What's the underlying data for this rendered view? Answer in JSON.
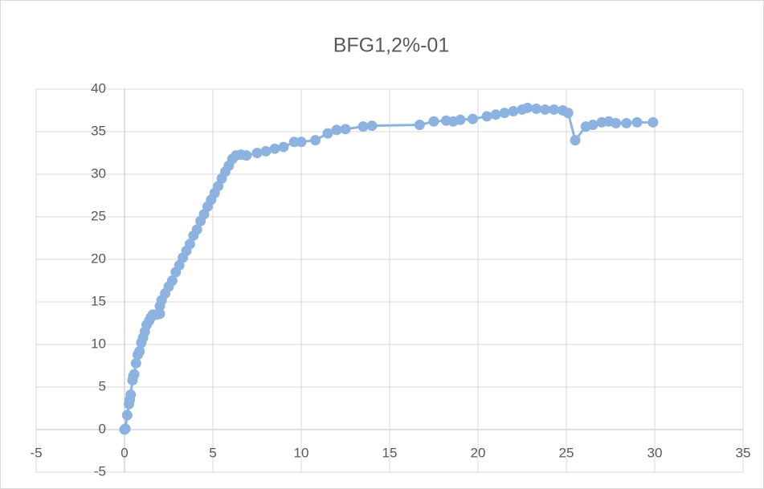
{
  "chart_data": {
    "type": "scatter",
    "title": "BFG1,2%-01",
    "series": [
      {
        "color": "#8cb3e0",
        "x": [
          0,
          0.05,
          0.15,
          0.25,
          0.3,
          0.35,
          0.45,
          0.5,
          0.55,
          0.65,
          0.75,
          0.85,
          0.95,
          1.05,
          1.15,
          1.25,
          1.4,
          1.5,
          1.6,
          1.8,
          2.0,
          2.0,
          2.1,
          2.3,
          2.5,
          2.7,
          2.9,
          3.1,
          3.3,
          3.5,
          3.7,
          3.9,
          4.1,
          4.3,
          4.5,
          4.7,
          4.9,
          5.1,
          5.3,
          5.5,
          5.7,
          5.9,
          6.1,
          6.3,
          6.6,
          6.9,
          7.5,
          8.0,
          8.5,
          9.0,
          9.6,
          10.0,
          10.8,
          11.5,
          12.0,
          12.5,
          13.5,
          14.0,
          16.7,
          17.5,
          18.2,
          18.6,
          19.0,
          19.7,
          20.5,
          21.0,
          21.5,
          22.0,
          22.5,
          22.8,
          23.3,
          23.8,
          24.3,
          24.8,
          25.1,
          25.5,
          26.1,
          26.5,
          27.0,
          27.4,
          27.8,
          28.4,
          29.0,
          29.9
        ],
        "values": [
          0,
          0.1,
          1.7,
          3,
          3.5,
          4.1,
          5.8,
          6.3,
          6.5,
          7.8,
          8.8,
          9.2,
          10.2,
          10.8,
          11.5,
          12.3,
          12.8,
          13.2,
          13.5,
          13.5,
          13.6,
          14.5,
          15.2,
          16,
          16.8,
          17.5,
          18.5,
          19.3,
          20.2,
          21,
          21.8,
          22.8,
          23.5,
          24.5,
          25.3,
          26.2,
          27,
          27.8,
          28.6,
          29.5,
          30.3,
          31,
          31.8,
          32.2,
          32.3,
          32.2,
          32.5,
          32.7,
          33,
          33.2,
          33.8,
          33.8,
          34,
          34.8,
          35.2,
          35.3,
          35.6,
          35.7,
          35.8,
          36.2,
          36.3,
          36.2,
          36.4,
          36.5,
          36.8,
          37,
          37.2,
          37.4,
          37.6,
          37.8,
          37.7,
          37.6,
          37.6,
          37.5,
          37.2,
          34,
          35.6,
          35.8,
          36.1,
          36.2,
          36,
          36,
          36.1,
          36.1
        ]
      }
    ],
    "xlim": [
      -5,
      35
    ],
    "xticks": [
      -5,
      0,
      5,
      10,
      15,
      20,
      25,
      30,
      35
    ],
    "ylim": [
      -5,
      40
    ],
    "yticks": [
      -5,
      0,
      5,
      10,
      15,
      20,
      25,
      30,
      35,
      40
    ],
    "grid": true
  }
}
